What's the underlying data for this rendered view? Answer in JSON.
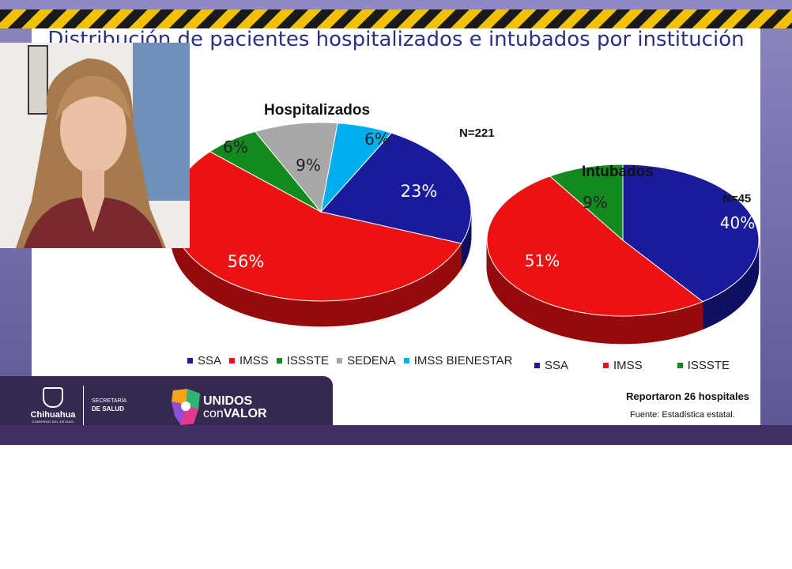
{
  "slide": {
    "title": "Distribución de pacientes hospitalizados e intubados por institución",
    "footer_hospitals": "Reportaron 26 hospitales",
    "footer_source": "Fuente: Estadística estatal."
  },
  "branding": {
    "state_name": "Chihuahua",
    "state_subtitle": "GOBIERNO DEL ESTADO",
    "secretaria_line1": "SECRETARÍA",
    "secretaria_line2": "DE SALUD",
    "campaign_word1": "UNIDOS",
    "campaign_word2_light": "con",
    "campaign_word2_bold": "VALOR"
  },
  "colors": {
    "SSA": "#1a1a9c",
    "IMSS": "#ee1111",
    "ISSSTE": "#138a1e",
    "SEDENA": "#a8a8a8",
    "IMSS BIENESTAR": "#00aff0",
    "title": "#2b2f86",
    "stripe_yellow": "#f2c200"
  },
  "chart_data": [
    {
      "type": "pie",
      "title": "Hospitalizados",
      "n_label": "N=221",
      "categories": [
        "SSA",
        "IMSS",
        "ISSSTE",
        "SEDENA",
        "IMSS BIENESTAR"
      ],
      "values": [
        23,
        56,
        6,
        9,
        6
      ],
      "value_labels": [
        "23%",
        "56%",
        "6%",
        "9%",
        "6%"
      ],
      "legend": [
        "SSA",
        "IMSS",
        "ISSSTE",
        "SEDENA",
        "IMSS BIENESTAR"
      ],
      "style": "3d"
    },
    {
      "type": "pie",
      "title": "Intubados",
      "n_label": "N=45",
      "categories": [
        "SSA",
        "IMSS",
        "ISSSTE"
      ],
      "values": [
        40,
        51,
        9
      ],
      "value_labels": [
        "40%",
        "51%",
        "9%"
      ],
      "legend": [
        "SSA",
        "IMSS",
        "ISSSTE"
      ],
      "style": "3d"
    }
  ]
}
